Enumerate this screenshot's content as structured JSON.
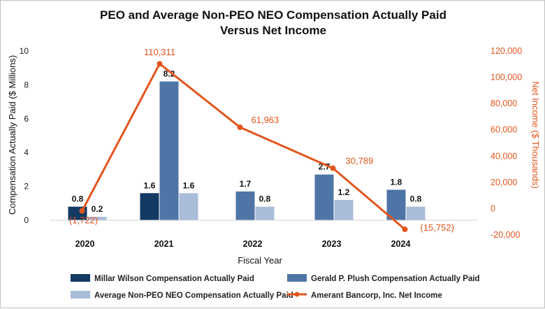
{
  "chart_data": {
    "type": "bar",
    "title": [
      "PEO and Average Non-PEO NEO Compensation Actually Paid",
      "Versus Net Income"
    ],
    "xlabel": "Fiscal Year",
    "ylabel": "Compensation Actually Paid ($ Millions)",
    "y2label": "Net Income ($ Thousands)",
    "ylim": [
      0,
      10
    ],
    "yticks": [
      0,
      2,
      4,
      6,
      8,
      10
    ],
    "y2lim": [
      -20000,
      120000
    ],
    "y2ticks": [
      "-20,000",
      "0",
      "20,000",
      "40,000",
      "60,000",
      "80,000",
      "100,000",
      "120,000"
    ],
    "y2tick_values": [
      -20000,
      0,
      20000,
      40000,
      60000,
      80000,
      100000,
      120000
    ],
    "categories": [
      "2020",
      "2021",
      "2022",
      "2023",
      "2024"
    ],
    "series": [
      {
        "name": "Millar Wilson Compensation Actually Paid",
        "color": "#133a63",
        "values": [
          0.8,
          1.6,
          null,
          null,
          null
        ],
        "labels": [
          "0.8",
          "1.6",
          "",
          "",
          ""
        ]
      },
      {
        "name": "Gerald P. Plush Compensation Actually Paid",
        "color": "#4f75a6",
        "values": [
          null,
          8.2,
          1.7,
          2.7,
          1.8
        ],
        "labels": [
          "",
          "8.2",
          "1.7",
          "2.7",
          "1.8"
        ]
      },
      {
        "name": "Average Non-PEO NEO Compensation Actually Paid",
        "color": "#a9bcd9",
        "values": [
          0.2,
          1.6,
          0.8,
          1.2,
          0.8
        ],
        "labels": [
          "0.2",
          "1.6",
          "0.8",
          "1.2",
          "0.8"
        ]
      }
    ],
    "line_series": {
      "name": "Amerant Bancorp, Inc. Net Income",
      "color": "#e2561e",
      "axis": "right",
      "values": [
        -1722,
        110311,
        61963,
        30789,
        -15752
      ],
      "labels": [
        "(1,722)",
        "110,311",
        "61,963",
        "30,789",
        "(15,752)"
      ]
    },
    "legend_position": "bottom"
  }
}
